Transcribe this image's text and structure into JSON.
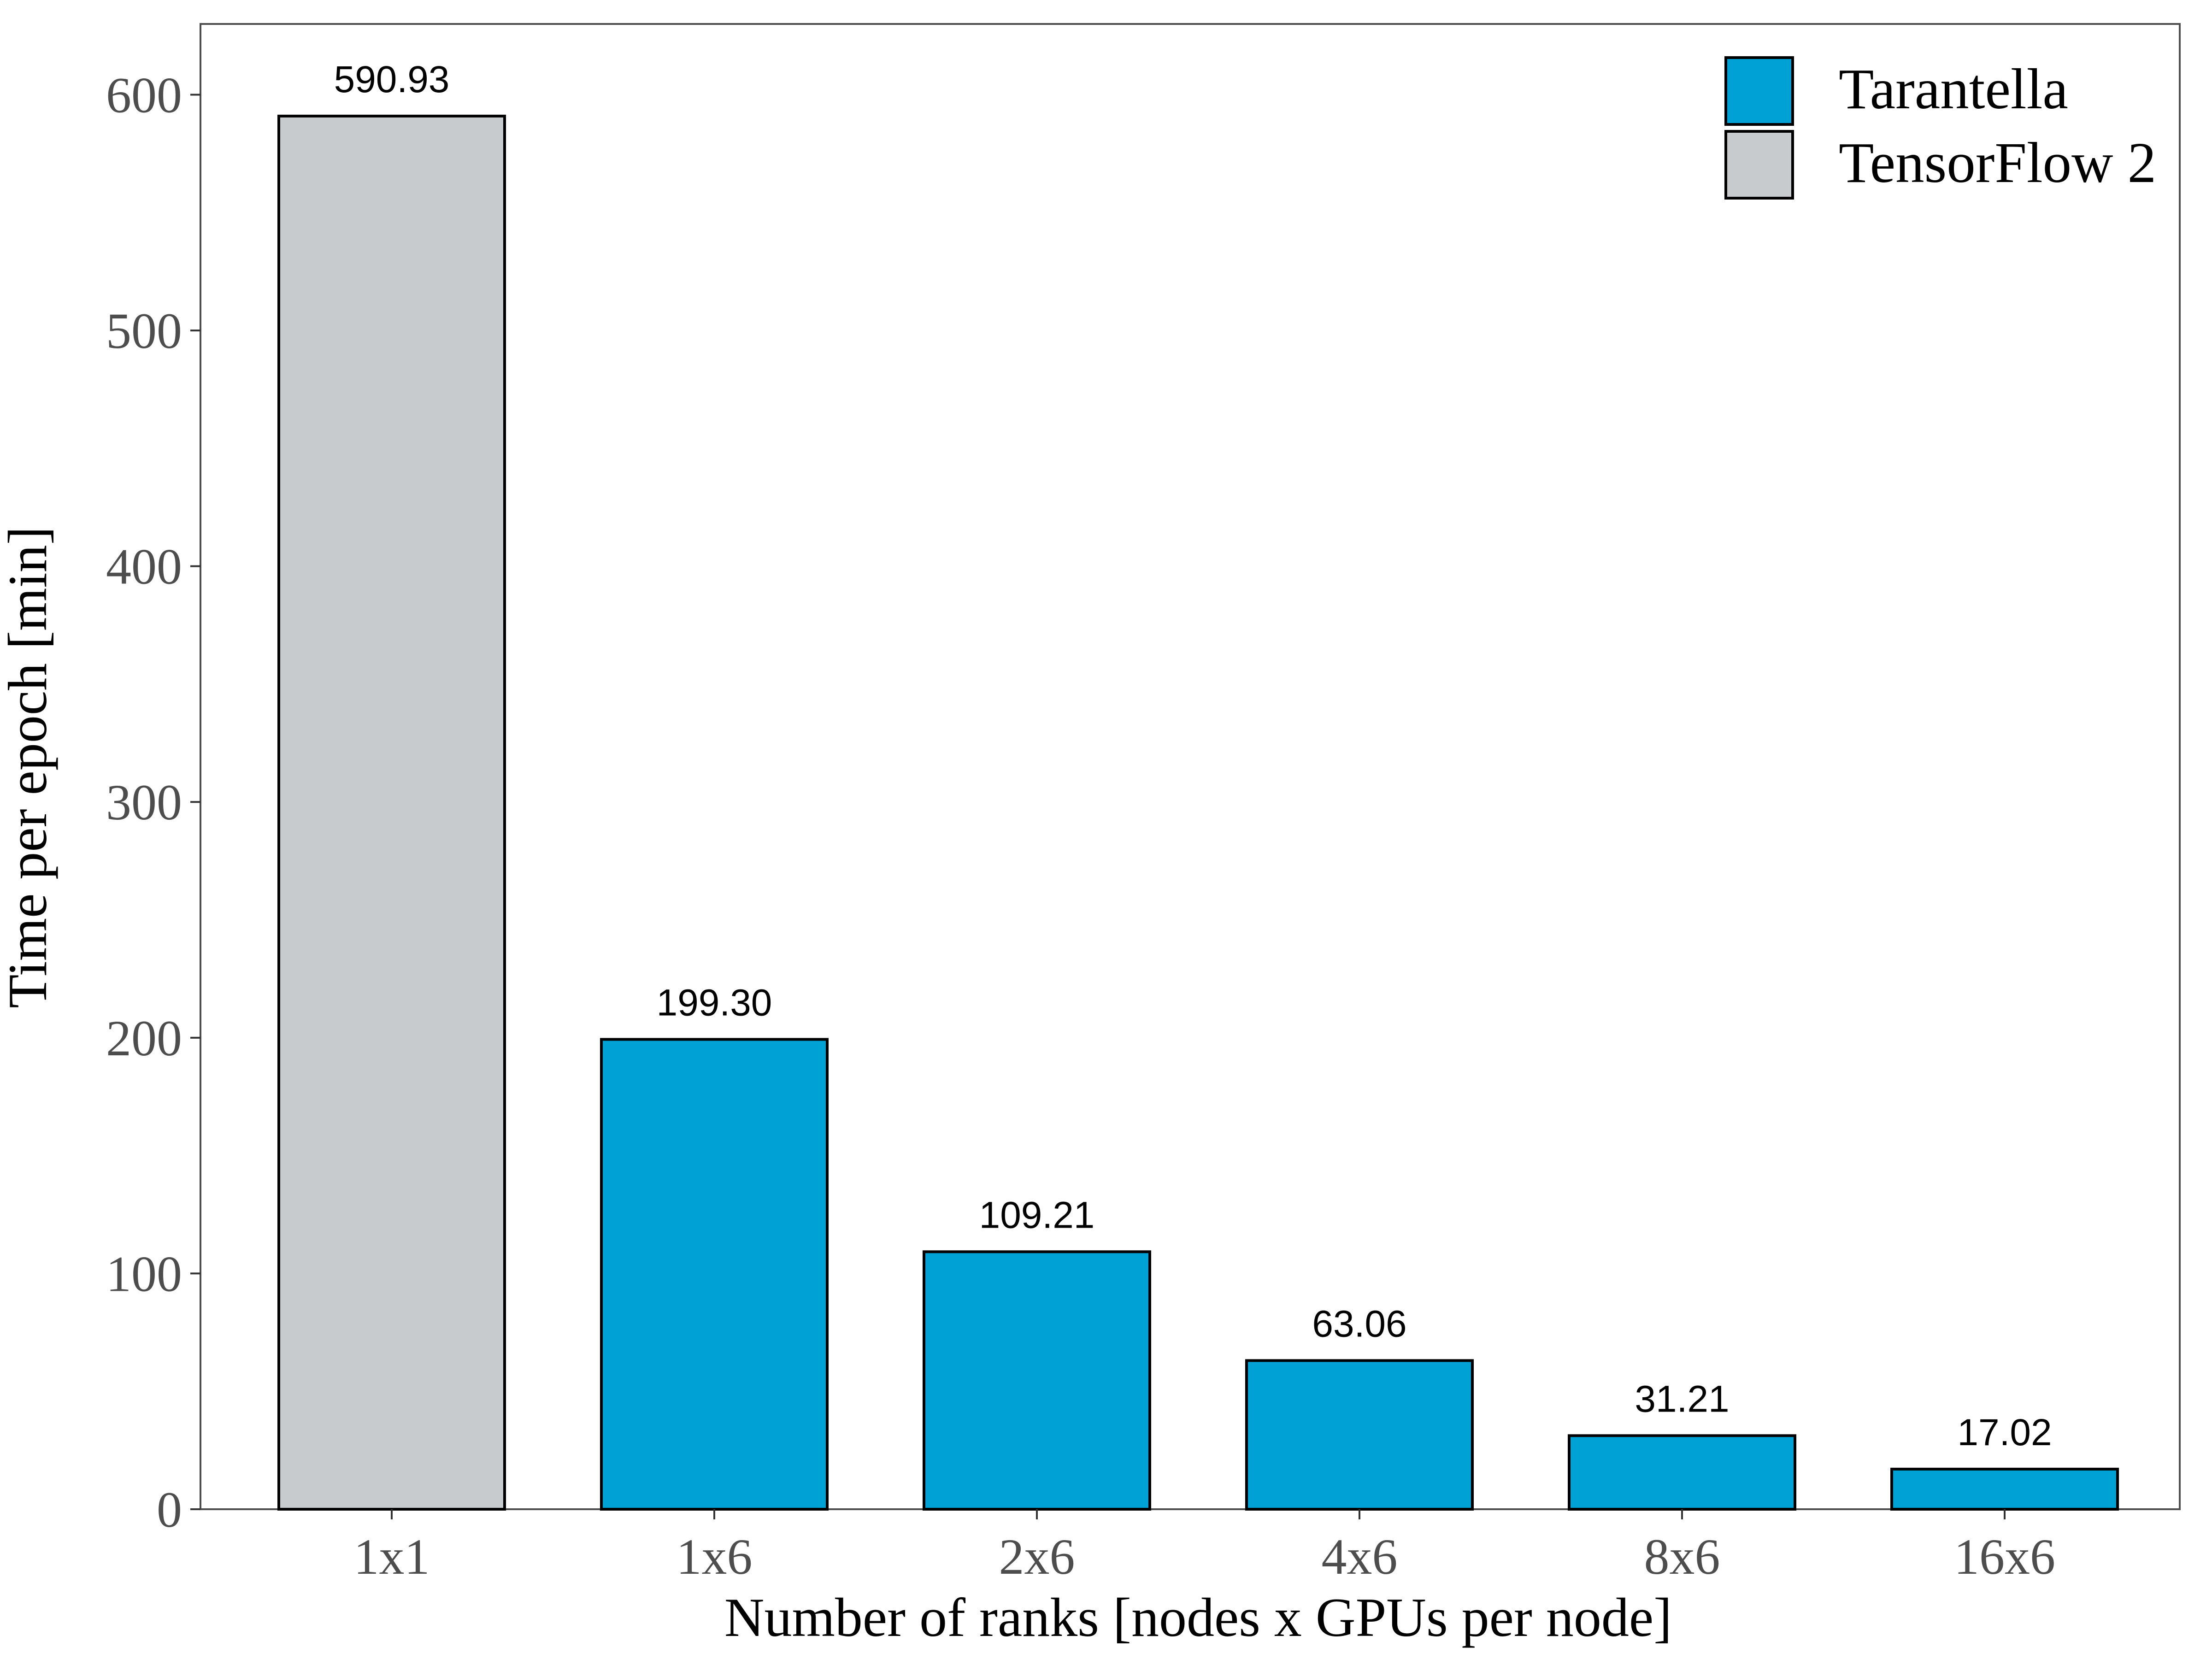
{
  "chart_data": {
    "type": "bar",
    "xlabel": "Number of ranks [nodes x GPUs per node]",
    "ylabel": "Time per epoch [min]",
    "ylim": [
      0,
      630
    ],
    "yticks": [
      0,
      100,
      200,
      300,
      400,
      500,
      600
    ],
    "grid": false,
    "legend_position": "top-right",
    "categories": [
      "1x1",
      "1x6",
      "2x6",
      "4x6",
      "8x6",
      "16x6"
    ],
    "values": [
      590.93,
      199.3,
      109.21,
      63.06,
      31.21,
      17.02
    ],
    "value_labels": [
      "590.93",
      "199.30",
      "109.21",
      "63.06",
      "31.21",
      "17.02"
    ],
    "bar_series": [
      "TensorFlow 2",
      "Tarantella",
      "Tarantella",
      "Tarantella",
      "Tarantella",
      "Tarantella"
    ],
    "series": [
      {
        "name": "Tarantella",
        "color": "#00a2d5"
      },
      {
        "name": "TensorFlow 2",
        "color": "#c8cbcd"
      }
    ]
  }
}
